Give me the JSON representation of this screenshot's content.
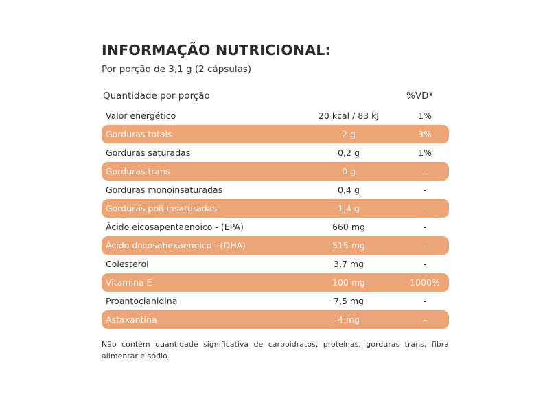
{
  "title": "INFORMAÇÃO NUTRICIONAL:",
  "subtitle": "Por porção de 3,1 g (2 cápsulas)",
  "header": {
    "quantity_label": "Quantidade por porção",
    "vd_label": "%VD*"
  },
  "highlight_color": "#eba577",
  "rows": [
    {
      "name": "Valor energético",
      "amount": "20 kcal / 83 kJ",
      "vd": "1%",
      "highlighted": false
    },
    {
      "name": "Gorduras totais",
      "amount": "2 g",
      "vd": "3%",
      "highlighted": true
    },
    {
      "name": "Gorduras saturadas",
      "amount": "0,2 g",
      "vd": "1%",
      "highlighted": false
    },
    {
      "name": "Gorduras trans",
      "amount": "0 g",
      "vd": "-",
      "highlighted": true
    },
    {
      "name": "Gorduras monoinsaturadas",
      "amount": "0,4 g",
      "vd": "-",
      "highlighted": false
    },
    {
      "name": "Gorduras poli-insaturadas",
      "amount": "1,4 g",
      "vd": "-",
      "highlighted": true
    },
    {
      "name": "Ácido eicosapentaenoico - (EPA)",
      "amount": "660 mg",
      "vd": "-",
      "highlighted": false
    },
    {
      "name": "Ácido docosahexaenoico - (DHA)",
      "amount": "515 mg",
      "vd": "-",
      "highlighted": true
    },
    {
      "name": "Colesterol",
      "amount": "3,7 mg",
      "vd": "-",
      "highlighted": false
    },
    {
      "name": "Vitamina E",
      "amount": "100 mg",
      "vd": "1000%",
      "highlighted": true
    },
    {
      "name": "Proantocianidina",
      "amount": "7,5 mg",
      "vd": "-",
      "highlighted": false
    },
    {
      "name": "Astaxantina",
      "amount": "4 mg",
      "vd": "-",
      "highlighted": true
    }
  ],
  "footnote": "Não contém quantidade significativa de carboidratos, proteínas, gorduras trans, fibra alimentar e sódio."
}
